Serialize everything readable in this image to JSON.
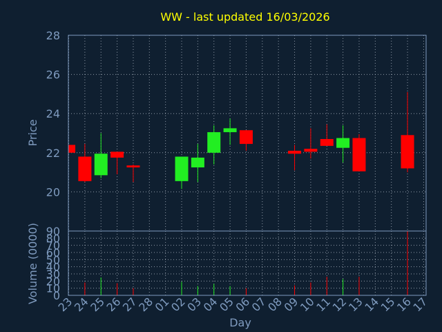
{
  "chart_data": {
    "type": "candlestick",
    "title": "WW - last updated 16/03/2026",
    "xlabel": "Day",
    "ylabel": "Price",
    "categories": [
      "23",
      "24",
      "25",
      "26",
      "27",
      "28",
      "01",
      "02",
      "03",
      "04",
      "05",
      "06",
      "07",
      "08",
      "09",
      "10",
      "11",
      "12",
      "13",
      "14",
      "15",
      "16",
      "17"
    ],
    "open": [
      22.4,
      21.8,
      20.85,
      22.05,
      21.35,
      null,
      null,
      20.55,
      21.25,
      22.0,
      23.05,
      23.15,
      null,
      null,
      22.1,
      22.2,
      22.7,
      22.25,
      22.75,
      null,
      null,
      22.9,
      null
    ],
    "high": [
      22.4,
      22.45,
      23.0,
      22.05,
      21.4,
      null,
      null,
      21.8,
      22.45,
      23.4,
      23.75,
      23.15,
      null,
      null,
      22.4,
      23.25,
      23.45,
      23.4,
      22.95,
      null,
      null,
      25.1,
      null
    ],
    "low": [
      22.0,
      20.5,
      20.7,
      20.9,
      20.5,
      null,
      null,
      20.15,
      20.5,
      21.4,
      22.4,
      22.1,
      null,
      null,
      21.1,
      21.7,
      22.35,
      21.5,
      21.05,
      null,
      null,
      21.0,
      null
    ],
    "close": [
      22.0,
      20.55,
      21.95,
      21.75,
      21.25,
      null,
      null,
      21.8,
      21.75,
      23.05,
      23.25,
      22.45,
      null,
      null,
      21.95,
      22.05,
      22.35,
      22.75,
      21.05,
      null,
      null,
      21.2,
      null
    ],
    "up_color": "#22ee22",
    "down_color": "#ff0000",
    "ylim": [
      18,
      28
    ],
    "yticks": [
      20,
      22,
      24,
      26,
      28
    ],
    "grid": true,
    "volume": {
      "ylabel": "Volume (0000)",
      "values": [
        null,
        18,
        25,
        17,
        10,
        null,
        null,
        19,
        13,
        16,
        13,
        10,
        null,
        null,
        14,
        18,
        26,
        23,
        26,
        null,
        null,
        90,
        null
      ],
      "ylim": [
        0,
        90
      ],
      "yticks": [
        0,
        10,
        20,
        30,
        40,
        50,
        60,
        70,
        80,
        90
      ]
    }
  }
}
